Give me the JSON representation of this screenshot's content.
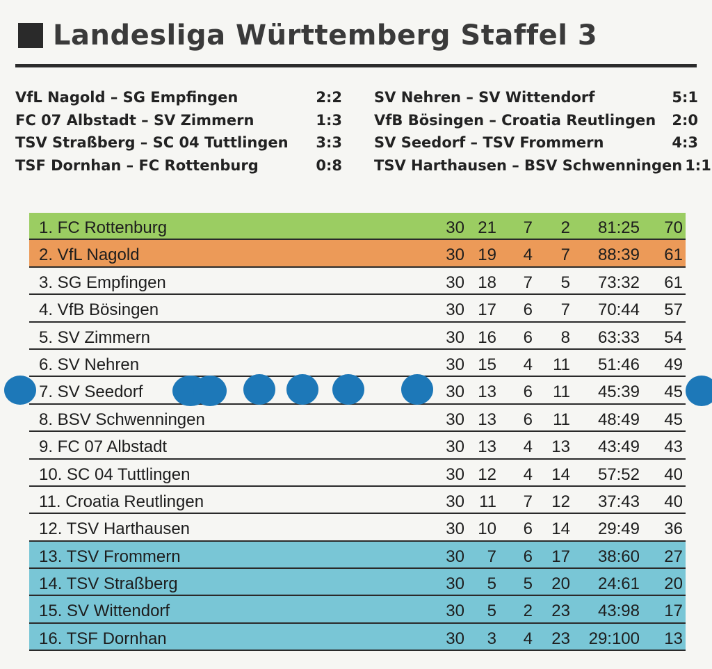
{
  "title": "Landesliga Württemberg Staffel 3",
  "colors": {
    "champion": "#9bcd62",
    "runner_up": "#ec9a58",
    "relegation": "#79c6d6",
    "dots": "#1d78b8"
  },
  "results_left": [
    {
      "match": "VfL Nagold – SG Empfingen",
      "score": "2:2"
    },
    {
      "match": "FC 07 Albstadt – SV Zimmern",
      "score": "1:3"
    },
    {
      "match": "TSV Straßberg – SC 04 Tuttlingen",
      "score": "3:3"
    },
    {
      "match": "TSF Dornhan – FC Rottenburg",
      "score": "0:8"
    }
  ],
  "results_right": [
    {
      "match": "SV Nehren – SV Wittendorf",
      "score": "5:1"
    },
    {
      "match": "VfB Bösingen – Croatia Reutlingen",
      "score": "2:0"
    },
    {
      "match": "SV Seedorf – TSV Frommern",
      "score": "4:3"
    },
    {
      "match": "TSV Harthausen – BSV Schwenningen",
      "score": "1:1"
    }
  ],
  "standings": [
    {
      "rank_team": "1. FC Rottenburg",
      "gp": "30",
      "w": "21",
      "d": "7",
      "l": "2",
      "goals": "81:25",
      "pts": "70",
      "zone": "champion"
    },
    {
      "rank_team": "2. VfL Nagold",
      "gp": "30",
      "w": "19",
      "d": "4",
      "l": "7",
      "goals": "88:39",
      "pts": "61",
      "zone": "runner_up"
    },
    {
      "rank_team": "3. SG Empfingen",
      "gp": "30",
      "w": "18",
      "d": "7",
      "l": "5",
      "goals": "73:32",
      "pts": "61",
      "zone": "none"
    },
    {
      "rank_team": "4. VfB Bösingen",
      "gp": "30",
      "w": "17",
      "d": "6",
      "l": "7",
      "goals": "70:44",
      "pts": "57",
      "zone": "none"
    },
    {
      "rank_team": "5. SV Zimmern",
      "gp": "30",
      "w": "16",
      "d": "6",
      "l": "8",
      "goals": "63:33",
      "pts": "54",
      "zone": "none"
    },
    {
      "rank_team": "6. SV Nehren",
      "gp": "30",
      "w": "15",
      "d": "4",
      "l": "11",
      "goals": "51:46",
      "pts": "49",
      "zone": "none"
    },
    {
      "rank_team": "7. SV Seedorf",
      "gp": "30",
      "w": "13",
      "d": "6",
      "l": "11",
      "goals": "45:39",
      "pts": "45",
      "zone": "none"
    },
    {
      "rank_team": "8. BSV Schwenningen",
      "gp": "30",
      "w": "13",
      "d": "6",
      "l": "11",
      "goals": "48:49",
      "pts": "45",
      "zone": "none"
    },
    {
      "rank_team": "9. FC 07 Albstadt",
      "gp": "30",
      "w": "13",
      "d": "4",
      "l": "13",
      "goals": "43:49",
      "pts": "43",
      "zone": "none"
    },
    {
      "rank_team": "10. SC 04 Tuttlingen",
      "gp": "30",
      "w": "12",
      "d": "4",
      "l": "14",
      "goals": "57:52",
      "pts": "40",
      "zone": "none"
    },
    {
      "rank_team": "11. Croatia Reutlingen",
      "gp": "30",
      "w": "11",
      "d": "7",
      "l": "12",
      "goals": "37:43",
      "pts": "40",
      "zone": "none"
    },
    {
      "rank_team": "12. TSV Harthausen",
      "gp": "30",
      "w": "10",
      "d": "6",
      "l": "14",
      "goals": "29:49",
      "pts": "36",
      "zone": "none"
    },
    {
      "rank_team": "13. TSV Frommern",
      "gp": "30",
      "w": "7",
      "d": "6",
      "l": "17",
      "goals": "38:60",
      "pts": "27",
      "zone": "relegation"
    },
    {
      "rank_team": "14. TSV Straßberg",
      "gp": "30",
      "w": "5",
      "d": "5",
      "l": "20",
      "goals": "24:61",
      "pts": "20",
      "zone": "relegation"
    },
    {
      "rank_team": "15. SV Wittendorf",
      "gp": "30",
      "w": "5",
      "d": "2",
      "l": "23",
      "goals": "43:98",
      "pts": "17",
      "zone": "relegation"
    },
    {
      "rank_team": "16. TSF Dornhan",
      "gp": "30",
      "w": "3",
      "d": "4",
      "l": "23",
      "goals": "29:100",
      "pts": "13",
      "zone": "relegation"
    }
  ]
}
